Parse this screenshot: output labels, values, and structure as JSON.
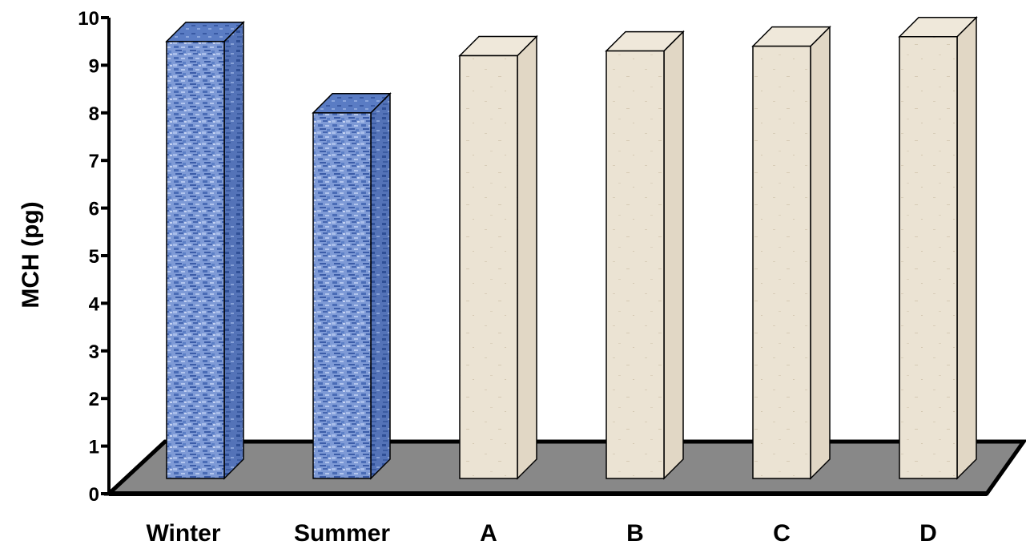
{
  "chart_data": {
    "type": "bar",
    "style": "3d",
    "categories": [
      "Winter",
      "Summer",
      "A",
      "B",
      "C",
      "D"
    ],
    "values": [
      9.5,
      8.0,
      9.2,
      9.3,
      9.4,
      9.6
    ],
    "ylabel": "MCH (pg)",
    "ylim": [
      0,
      10
    ],
    "yticks": [
      0,
      1,
      2,
      3,
      4,
      5,
      6,
      7,
      8,
      9,
      10
    ],
    "grid": false,
    "colors": {
      "Winter": "#6f8fd0",
      "Summer": "#6f8fd0",
      "A": "#e8dfcf",
      "B": "#e8dfcf",
      "C": "#e8dfcf",
      "D": "#e8dfcf"
    },
    "floor_color": "#888888"
  }
}
